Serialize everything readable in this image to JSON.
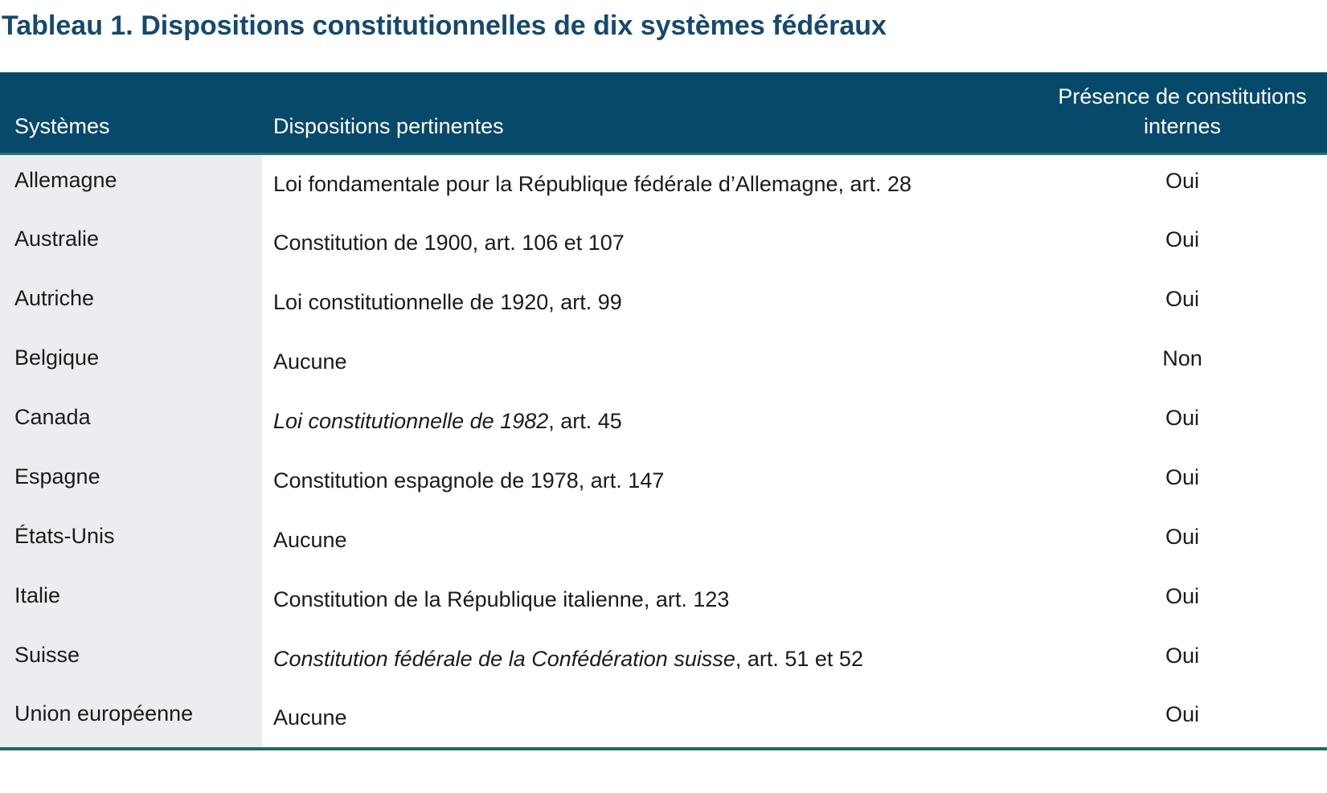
{
  "title": "Tableau 1. Dispositions constitutionnelles de dix systèmes fédéraux",
  "colors": {
    "title_text": "#16496E",
    "header_bg": "#07496B",
    "header_text": "#FFFFFF",
    "first_column_bg": "#ECEDF0",
    "body_text": "#1B1B1D",
    "header_underline": "#2E726E",
    "table_bottom_border": "#1E6A68"
  },
  "table": {
    "columns": {
      "systems": "Systèmes",
      "provisions": "Dispositions pertinentes",
      "presence": "Présence de constitutions internes"
    },
    "rows": [
      {
        "system": "Allemagne",
        "provision_italic": "",
        "provision": "Loi fondamentale pour la République fédérale d’Allemagne, art. 28",
        "presence": "Oui"
      },
      {
        "system": "Australie",
        "provision_italic": "",
        "provision": "Constitution de 1900, art. 106 et 107",
        "presence": "Oui"
      },
      {
        "system": "Autriche",
        "provision_italic": "",
        "provision": "Loi constitutionnelle de 1920, art. 99",
        "presence": "Oui"
      },
      {
        "system": "Belgique",
        "provision_italic": "",
        "provision": "Aucune",
        "presence": "Non"
      },
      {
        "system": "Canada",
        "provision_italic": "Loi constitutionnelle de 1982",
        "provision": ", art. 45",
        "presence": "Oui"
      },
      {
        "system": "Espagne",
        "provision_italic": "",
        "provision": "Constitution espagnole de 1978, art. 147",
        "presence": "Oui"
      },
      {
        "system": "États-Unis",
        "provision_italic": "",
        "provision": "Aucune",
        "presence": "Oui"
      },
      {
        "system": "Italie",
        "provision_italic": "",
        "provision": "Constitution de la République italienne, art. 123",
        "presence": "Oui"
      },
      {
        "system": "Suisse",
        "provision_italic": "Constitution fédérale de la Confédération suisse",
        "provision": ", art. 51 et 52",
        "presence": "Oui"
      },
      {
        "system": "Union européenne",
        "provision_italic": "",
        "provision": "Aucune",
        "presence": "Oui"
      }
    ]
  }
}
